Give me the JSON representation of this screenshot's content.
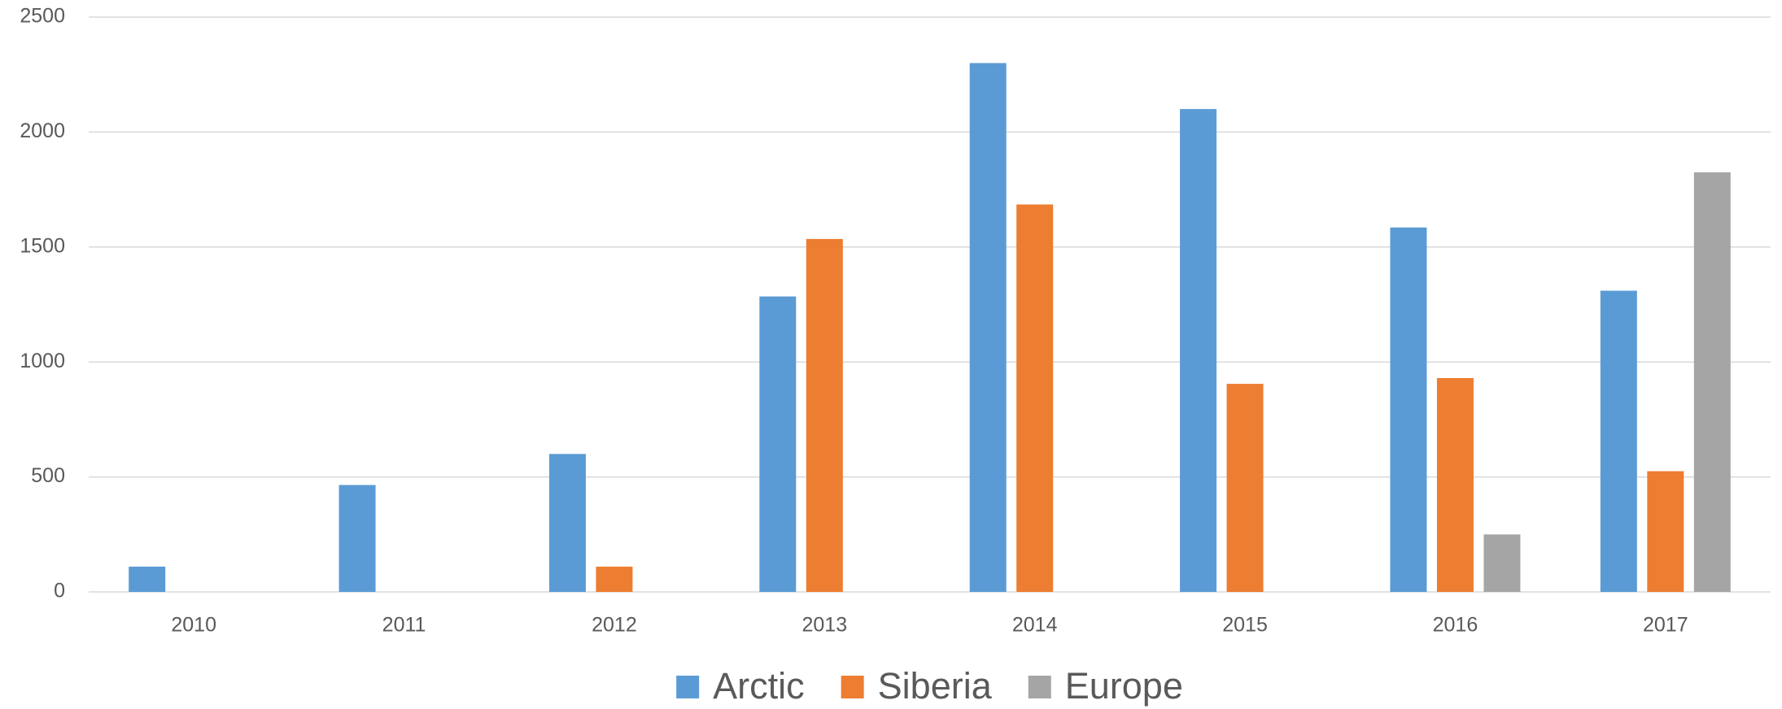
{
  "chart_data": {
    "type": "bar",
    "categories": [
      "2010",
      "2011",
      "2012",
      "2013",
      "2014",
      "2015",
      "2016",
      "2017"
    ],
    "series": [
      {
        "name": "Arctic",
        "color": "#5b9bd5",
        "values": [
          110,
          465,
          600,
          1285,
          2300,
          2100,
          1585,
          1310
        ]
      },
      {
        "name": "Siberia",
        "color": "#ed7d31",
        "values": [
          null,
          null,
          110,
          1535,
          1685,
          905,
          930,
          525
        ]
      },
      {
        "name": "Europe",
        "color": "#a5a5a5",
        "values": [
          null,
          null,
          null,
          null,
          null,
          null,
          250,
          1825
        ]
      }
    ],
    "ylim": [
      0,
      2500
    ],
    "yticks": [
      0,
      500,
      1000,
      1500,
      2000,
      2500
    ],
    "grid": true,
    "legend": "bottom"
  }
}
